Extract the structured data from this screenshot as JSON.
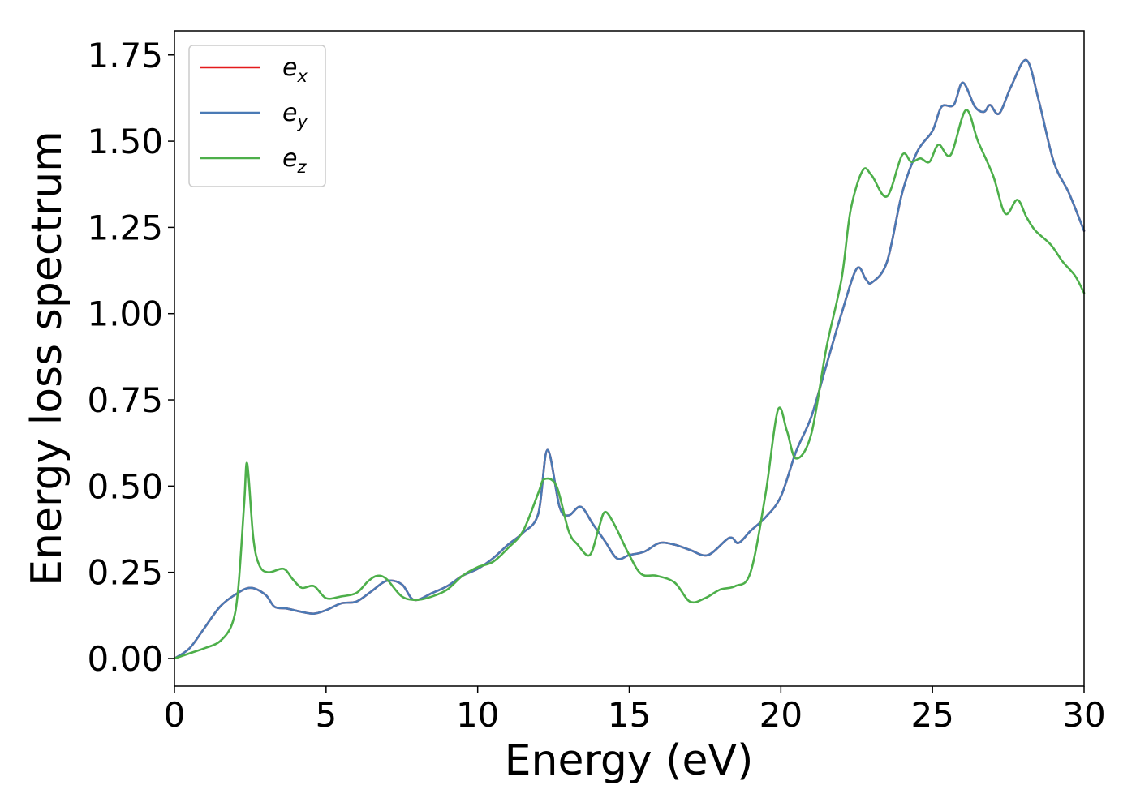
{
  "chart_data": {
    "type": "line",
    "title": "",
    "xlabel": "Energy (eV)",
    "ylabel": "Energy loss spectrum",
    "xlim": [
      0,
      30
    ],
    "ylim": [
      -0.08,
      1.82
    ],
    "xticks": [
      0,
      5,
      10,
      15,
      20,
      25,
      30
    ],
    "yticks": [
      "0.00",
      "0.25",
      "0.50",
      "0.75",
      "1.00",
      "1.25",
      "1.50",
      "1.75"
    ],
    "grid": false,
    "legend_position": "top-left",
    "series": [
      {
        "name": "e_x",
        "symbol": "e",
        "subscript": "x",
        "color": "#e41a1c",
        "points": [
          [
            0,
            0
          ],
          [
            0.5,
            0.03
          ],
          [
            1,
            0.09
          ],
          [
            1.5,
            0.15
          ],
          [
            2,
            0.185
          ],
          [
            2.5,
            0.205
          ],
          [
            3,
            0.185
          ],
          [
            3.3,
            0.15
          ],
          [
            3.7,
            0.145
          ],
          [
            4.2,
            0.135
          ],
          [
            4.6,
            0.13
          ],
          [
            5,
            0.14
          ],
          [
            5.5,
            0.16
          ],
          [
            6,
            0.165
          ],
          [
            6.5,
            0.195
          ],
          [
            7,
            0.225
          ],
          [
            7.5,
            0.215
          ],
          [
            7.9,
            0.17
          ],
          [
            8.5,
            0.19
          ],
          [
            9,
            0.21
          ],
          [
            9.5,
            0.24
          ],
          [
            10,
            0.26
          ],
          [
            10.5,
            0.29
          ],
          [
            11,
            0.33
          ],
          [
            11.5,
            0.365
          ],
          [
            12,
            0.42
          ],
          [
            12.3,
            0.605
          ],
          [
            12.7,
            0.44
          ],
          [
            13,
            0.415
          ],
          [
            13.4,
            0.44
          ],
          [
            13.8,
            0.39
          ],
          [
            14.2,
            0.34
          ],
          [
            14.6,
            0.29
          ],
          [
            15,
            0.3
          ],
          [
            15.5,
            0.31
          ],
          [
            16,
            0.335
          ],
          [
            16.5,
            0.33
          ],
          [
            17,
            0.315
          ],
          [
            17.6,
            0.3
          ],
          [
            18.3,
            0.35
          ],
          [
            18.6,
            0.335
          ],
          [
            19,
            0.37
          ],
          [
            19.5,
            0.41
          ],
          [
            20,
            0.47
          ],
          [
            20.5,
            0.6
          ],
          [
            21,
            0.7
          ],
          [
            21.5,
            0.85
          ],
          [
            22,
            1.0
          ],
          [
            22.5,
            1.13
          ],
          [
            22.8,
            1.1
          ],
          [
            23,
            1.09
          ],
          [
            23.5,
            1.15
          ],
          [
            24,
            1.35
          ],
          [
            24.5,
            1.47
          ],
          [
            25,
            1.53
          ],
          [
            25.3,
            1.6
          ],
          [
            25.7,
            1.605
          ],
          [
            26,
            1.67
          ],
          [
            26.4,
            1.6
          ],
          [
            26.7,
            1.585
          ],
          [
            26.9,
            1.605
          ],
          [
            27.2,
            1.58
          ],
          [
            27.6,
            1.66
          ],
          [
            28.1,
            1.735
          ],
          [
            28.5,
            1.62
          ],
          [
            29,
            1.44
          ],
          [
            29.5,
            1.35
          ],
          [
            30,
            1.24
          ]
        ]
      },
      {
        "name": "e_y",
        "symbol": "e",
        "subscript": "y",
        "color": "#4a7ab5",
        "points": [
          [
            0,
            0
          ],
          [
            0.5,
            0.03
          ],
          [
            1,
            0.09
          ],
          [
            1.5,
            0.15
          ],
          [
            2,
            0.185
          ],
          [
            2.5,
            0.205
          ],
          [
            3,
            0.185
          ],
          [
            3.3,
            0.15
          ],
          [
            3.7,
            0.145
          ],
          [
            4.2,
            0.135
          ],
          [
            4.6,
            0.13
          ],
          [
            5,
            0.14
          ],
          [
            5.5,
            0.16
          ],
          [
            6,
            0.165
          ],
          [
            6.5,
            0.195
          ],
          [
            7,
            0.225
          ],
          [
            7.5,
            0.215
          ],
          [
            7.9,
            0.17
          ],
          [
            8.5,
            0.19
          ],
          [
            9,
            0.21
          ],
          [
            9.5,
            0.24
          ],
          [
            10,
            0.26
          ],
          [
            10.5,
            0.29
          ],
          [
            11,
            0.33
          ],
          [
            11.5,
            0.365
          ],
          [
            12,
            0.42
          ],
          [
            12.3,
            0.605
          ],
          [
            12.7,
            0.44
          ],
          [
            13,
            0.415
          ],
          [
            13.4,
            0.44
          ],
          [
            13.8,
            0.39
          ],
          [
            14.2,
            0.34
          ],
          [
            14.6,
            0.29
          ],
          [
            15,
            0.3
          ],
          [
            15.5,
            0.31
          ],
          [
            16,
            0.335
          ],
          [
            16.5,
            0.33
          ],
          [
            17,
            0.315
          ],
          [
            17.6,
            0.3
          ],
          [
            18.3,
            0.35
          ],
          [
            18.6,
            0.335
          ],
          [
            19,
            0.37
          ],
          [
            19.5,
            0.41
          ],
          [
            20,
            0.47
          ],
          [
            20.5,
            0.6
          ],
          [
            21,
            0.7
          ],
          [
            21.5,
            0.85
          ],
          [
            22,
            1.0
          ],
          [
            22.5,
            1.13
          ],
          [
            22.8,
            1.1
          ],
          [
            23,
            1.09
          ],
          [
            23.5,
            1.15
          ],
          [
            24,
            1.35
          ],
          [
            24.5,
            1.47
          ],
          [
            25,
            1.53
          ],
          [
            25.3,
            1.6
          ],
          [
            25.7,
            1.605
          ],
          [
            26,
            1.67
          ],
          [
            26.4,
            1.6
          ],
          [
            26.7,
            1.585
          ],
          [
            26.9,
            1.605
          ],
          [
            27.2,
            1.58
          ],
          [
            27.6,
            1.66
          ],
          [
            28.1,
            1.735
          ],
          [
            28.5,
            1.62
          ],
          [
            29,
            1.44
          ],
          [
            29.5,
            1.35
          ],
          [
            30,
            1.24
          ]
        ]
      },
      {
        "name": "e_z",
        "symbol": "e",
        "subscript": "z",
        "color": "#4daf4a",
        "points": [
          [
            0,
            0
          ],
          [
            0.5,
            0.015
          ],
          [
            1,
            0.03
          ],
          [
            1.5,
            0.05
          ],
          [
            1.9,
            0.1
          ],
          [
            2.1,
            0.2
          ],
          [
            2.3,
            0.45
          ],
          [
            2.4,
            0.565
          ],
          [
            2.6,
            0.35
          ],
          [
            2.8,
            0.27
          ],
          [
            3.1,
            0.25
          ],
          [
            3.6,
            0.26
          ],
          [
            3.9,
            0.23
          ],
          [
            4.2,
            0.205
          ],
          [
            4.6,
            0.21
          ],
          [
            5,
            0.175
          ],
          [
            5.5,
            0.18
          ],
          [
            6,
            0.19
          ],
          [
            6.4,
            0.225
          ],
          [
            6.7,
            0.24
          ],
          [
            7,
            0.23
          ],
          [
            7.5,
            0.18
          ],
          [
            8,
            0.17
          ],
          [
            8.5,
            0.18
          ],
          [
            9,
            0.2
          ],
          [
            9.5,
            0.24
          ],
          [
            10,
            0.265
          ],
          [
            10.5,
            0.28
          ],
          [
            11,
            0.32
          ],
          [
            11.5,
            0.37
          ],
          [
            12,
            0.48
          ],
          [
            12.2,
            0.52
          ],
          [
            12.6,
            0.5
          ],
          [
            13,
            0.37
          ],
          [
            13.3,
            0.33
          ],
          [
            13.7,
            0.3
          ],
          [
            14,
            0.38
          ],
          [
            14.2,
            0.425
          ],
          [
            14.5,
            0.39
          ],
          [
            15,
            0.3
          ],
          [
            15.4,
            0.245
          ],
          [
            15.9,
            0.24
          ],
          [
            16.5,
            0.22
          ],
          [
            17,
            0.165
          ],
          [
            17.5,
            0.175
          ],
          [
            18,
            0.2
          ],
          [
            18.5,
            0.21
          ],
          [
            19,
            0.25
          ],
          [
            19.5,
            0.48
          ],
          [
            19.9,
            0.72
          ],
          [
            20.2,
            0.66
          ],
          [
            20.5,
            0.58
          ],
          [
            21,
            0.65
          ],
          [
            21.5,
            0.9
          ],
          [
            22,
            1.1
          ],
          [
            22.3,
            1.3
          ],
          [
            22.7,
            1.415
          ],
          [
            23,
            1.4
          ],
          [
            23.5,
            1.34
          ],
          [
            24,
            1.46
          ],
          [
            24.3,
            1.44
          ],
          [
            24.6,
            1.45
          ],
          [
            24.9,
            1.44
          ],
          [
            25.2,
            1.49
          ],
          [
            25.6,
            1.46
          ],
          [
            26.1,
            1.59
          ],
          [
            26.5,
            1.5
          ],
          [
            27,
            1.4
          ],
          [
            27.4,
            1.29
          ],
          [
            27.8,
            1.33
          ],
          [
            28.1,
            1.28
          ],
          [
            28.4,
            1.24
          ],
          [
            28.9,
            1.2
          ],
          [
            29.3,
            1.15
          ],
          [
            29.7,
            1.11
          ],
          [
            30,
            1.06
          ]
        ]
      }
    ]
  }
}
